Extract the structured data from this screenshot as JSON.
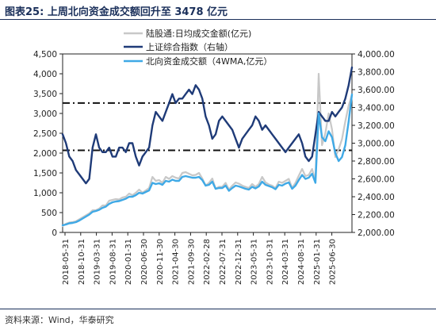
{
  "title": "图表25:   上周北向资金成交额回升至 3478 亿元",
  "source": "资料来源：Wind，华泰研究",
  "chart_data": {
    "type": "line",
    "left_axis": {
      "ylim": [
        0,
        4500
      ],
      "ticks": [
        "0",
        "500",
        "1,000",
        "1,500",
        "2,000",
        "2,500",
        "3,000",
        "3,500",
        "4,000",
        "4,500"
      ]
    },
    "right_axis": {
      "ylim": [
        2000,
        4000
      ],
      "ticks": [
        "2,000.00",
        "2,200.00",
        "2,400.00",
        "2,600.00",
        "2,800.00",
        "3,000.00",
        "3,200.00",
        "3,400.00",
        "3,600.00",
        "3,800.00",
        "4,000.00"
      ]
    },
    "x_ticks": [
      "2018-05-31",
      "2018-10-31",
      "2019-03-31",
      "2019-08-31",
      "2020-01-31",
      "2020-06-30",
      "2020-11-30",
      "2021-04-30",
      "2021-09-30",
      "2022-02-28",
      "2022-07-31",
      "2022-12-31",
      "2023-05-31",
      "2023-10-31",
      "2024-03-31",
      "2024-08-31",
      "2025-01-31",
      "2025-06-30"
    ],
    "x_range": [
      0,
      87
    ],
    "legend": {
      "placement": "top-center",
      "entries": [
        "陆股通:日均成交金额(亿元)",
        "上证综合指数（右轴）",
        "北向资金成交额（4WMA,亿元）"
      ]
    },
    "series": [
      {
        "name": "陆股通:日均成交金额(亿元)",
        "axis": "left",
        "color": "#c8c8c8",
        "points": [
          [
            0,
            160
          ],
          [
            1,
            220
          ],
          [
            2,
            250
          ],
          [
            3,
            260
          ],
          [
            4,
            280
          ],
          [
            5,
            330
          ],
          [
            6,
            380
          ],
          [
            7,
            430
          ],
          [
            8,
            480
          ],
          [
            9,
            560
          ],
          [
            10,
            560
          ],
          [
            11,
            600
          ],
          [
            12,
            680
          ],
          [
            13,
            680
          ],
          [
            14,
            800
          ],
          [
            15,
            820
          ],
          [
            16,
            840
          ],
          [
            17,
            830
          ],
          [
            18,
            880
          ],
          [
            19,
            900
          ],
          [
            20,
            980
          ],
          [
            21,
            940
          ],
          [
            22,
            1000
          ],
          [
            23,
            1080
          ],
          [
            24,
            1000
          ],
          [
            25,
            1060
          ],
          [
            26,
            1120
          ],
          [
            27,
            1400
          ],
          [
            28,
            1300
          ],
          [
            29,
            1320
          ],
          [
            30,
            1250
          ],
          [
            31,
            1400
          ],
          [
            32,
            1350
          ],
          [
            33,
            1420
          ],
          [
            34,
            1380
          ],
          [
            35,
            1360
          ],
          [
            36,
            1500
          ],
          [
            37,
            1520
          ],
          [
            38,
            1480
          ],
          [
            39,
            1440
          ],
          [
            40,
            1450
          ],
          [
            41,
            1500
          ],
          [
            42,
            1360
          ],
          [
            43,
            1180
          ],
          [
            44,
            1250
          ],
          [
            45,
            1360
          ],
          [
            46,
            1100
          ],
          [
            47,
            1150
          ],
          [
            48,
            1150
          ],
          [
            49,
            1250
          ],
          [
            50,
            1080
          ],
          [
            51,
            1180
          ],
          [
            52,
            1260
          ],
          [
            53,
            1230
          ],
          [
            54,
            1180
          ],
          [
            55,
            1150
          ],
          [
            56,
            1120
          ],
          [
            57,
            1220
          ],
          [
            58,
            1150
          ],
          [
            59,
            1220
          ],
          [
            60,
            1400
          ],
          [
            61,
            1260
          ],
          [
            62,
            1210
          ],
          [
            63,
            1180
          ],
          [
            64,
            1120
          ],
          [
            65,
            1280
          ],
          [
            66,
            1250
          ],
          [
            67,
            1300
          ],
          [
            68,
            1350
          ],
          [
            69,
            1120
          ],
          [
            70,
            1250
          ],
          [
            71,
            1430
          ],
          [
            72,
            1600
          ],
          [
            73,
            1420
          ],
          [
            74,
            1450
          ],
          [
            75,
            1600
          ],
          [
            76,
            1300
          ],
          [
            77,
            4000
          ],
          [
            78,
            2200
          ],
          [
            79,
            2500
          ],
          [
            80,
            3000
          ],
          [
            81,
            2600
          ],
          [
            82,
            1900
          ],
          [
            83,
            2100
          ],
          [
            84,
            2350
          ],
          [
            85,
            2800
          ],
          [
            86,
            3200
          ],
          [
            87,
            3478
          ]
        ]
      },
      {
        "name": "上证综合指数（右轴）",
        "axis": "right",
        "color": "#1f3b78",
        "points": [
          [
            0,
            3100
          ],
          [
            1,
            3000
          ],
          [
            2,
            2850
          ],
          [
            3,
            2800
          ],
          [
            4,
            2700
          ],
          [
            5,
            2650
          ],
          [
            6,
            2600
          ],
          [
            7,
            2550
          ],
          [
            8,
            2600
          ],
          [
            9,
            2950
          ],
          [
            10,
            3100
          ],
          [
            11,
            2950
          ],
          [
            12,
            2900
          ],
          [
            13,
            2900
          ],
          [
            14,
            2950
          ],
          [
            15,
            2850
          ],
          [
            16,
            2850
          ],
          [
            17,
            2950
          ],
          [
            18,
            2950
          ],
          [
            19,
            2900
          ],
          [
            20,
            3000
          ],
          [
            21,
            3000
          ],
          [
            22,
            2850
          ],
          [
            23,
            2750
          ],
          [
            24,
            2850
          ],
          [
            25,
            2900
          ],
          [
            26,
            2950
          ],
          [
            27,
            3200
          ],
          [
            28,
            3350
          ],
          [
            29,
            3300
          ],
          [
            30,
            3250
          ],
          [
            31,
            3350
          ],
          [
            32,
            3450
          ],
          [
            33,
            3550
          ],
          [
            34,
            3450
          ],
          [
            35,
            3500
          ],
          [
            36,
            3500
          ],
          [
            37,
            3550
          ],
          [
            38,
            3600
          ],
          [
            39,
            3550
          ],
          [
            40,
            3650
          ],
          [
            41,
            3600
          ],
          [
            42,
            3500
          ],
          [
            43,
            3300
          ],
          [
            44,
            3200
          ],
          [
            45,
            3050
          ],
          [
            46,
            3100
          ],
          [
            47,
            3250
          ],
          [
            48,
            3300
          ],
          [
            49,
            3250
          ],
          [
            50,
            3200
          ],
          [
            51,
            3150
          ],
          [
            52,
            3050
          ],
          [
            53,
            2950
          ],
          [
            54,
            3050
          ],
          [
            55,
            3100
          ],
          [
            56,
            3150
          ],
          [
            57,
            3200
          ],
          [
            58,
            3300
          ],
          [
            59,
            3250
          ],
          [
            60,
            3150
          ],
          [
            61,
            3200
          ],
          [
            62,
            3150
          ],
          [
            63,
            3100
          ],
          [
            64,
            3050
          ],
          [
            65,
            3000
          ],
          [
            66,
            2950
          ],
          [
            67,
            2900
          ],
          [
            68,
            2950
          ],
          [
            69,
            3000
          ],
          [
            70,
            3050
          ],
          [
            71,
            3100
          ],
          [
            72,
            3000
          ],
          [
            73,
            2850
          ],
          [
            74,
            2800
          ],
          [
            75,
            2850
          ],
          [
            76,
            3100
          ],
          [
            77,
            3350
          ],
          [
            78,
            3300
          ],
          [
            79,
            3250
          ],
          [
            80,
            3250
          ],
          [
            81,
            3350
          ],
          [
            82,
            3300
          ],
          [
            83,
            3350
          ],
          [
            84,
            3400
          ],
          [
            85,
            3500
          ],
          [
            86,
            3650
          ],
          [
            87,
            3850
          ]
        ]
      },
      {
        "name": "北向资金成交额（4WMA,亿元）",
        "axis": "left",
        "color": "#3fa9e6",
        "points": [
          [
            0,
            180
          ],
          [
            1,
            200
          ],
          [
            2,
            230
          ],
          [
            3,
            240
          ],
          [
            4,
            260
          ],
          [
            5,
            300
          ],
          [
            6,
            350
          ],
          [
            7,
            400
          ],
          [
            8,
            450
          ],
          [
            9,
            520
          ],
          [
            10,
            540
          ],
          [
            11,
            570
          ],
          [
            12,
            620
          ],
          [
            13,
            650
          ],
          [
            14,
            720
          ],
          [
            15,
            760
          ],
          [
            16,
            780
          ],
          [
            17,
            790
          ],
          [
            18,
            820
          ],
          [
            19,
            850
          ],
          [
            20,
            900
          ],
          [
            21,
            900
          ],
          [
            22,
            940
          ],
          [
            23,
            1000
          ],
          [
            24,
            980
          ],
          [
            25,
            1020
          ],
          [
            26,
            1060
          ],
          [
            27,
            1250
          ],
          [
            28,
            1220
          ],
          [
            29,
            1240
          ],
          [
            30,
            1200
          ],
          [
            31,
            1300
          ],
          [
            32,
            1280
          ],
          [
            33,
            1330
          ],
          [
            34,
            1300
          ],
          [
            35,
            1300
          ],
          [
            36,
            1400
          ],
          [
            37,
            1420
          ],
          [
            38,
            1400
          ],
          [
            39,
            1380
          ],
          [
            40,
            1380
          ],
          [
            41,
            1400
          ],
          [
            42,
            1320
          ],
          [
            43,
            1180
          ],
          [
            44,
            1200
          ],
          [
            45,
            1280
          ],
          [
            46,
            1100
          ],
          [
            47,
            1120
          ],
          [
            48,
            1120
          ],
          [
            49,
            1180
          ],
          [
            50,
            1050
          ],
          [
            51,
            1120
          ],
          [
            52,
            1180
          ],
          [
            53,
            1160
          ],
          [
            54,
            1130
          ],
          [
            55,
            1100
          ],
          [
            56,
            1080
          ],
          [
            57,
            1150
          ],
          [
            58,
            1110
          ],
          [
            59,
            1160
          ],
          [
            60,
            1280
          ],
          [
            61,
            1200
          ],
          [
            62,
            1170
          ],
          [
            63,
            1140
          ],
          [
            64,
            1090
          ],
          [
            65,
            1200
          ],
          [
            66,
            1180
          ],
          [
            67,
            1230
          ],
          [
            68,
            1260
          ],
          [
            69,
            1100
          ],
          [
            70,
            1180
          ],
          [
            71,
            1320
          ],
          [
            72,
            1450
          ],
          [
            73,
            1350
          ],
          [
            74,
            1380
          ],
          [
            75,
            1480
          ],
          [
            76,
            1250
          ],
          [
            77,
            3000
          ],
          [
            78,
            2400
          ],
          [
            79,
            2300
          ],
          [
            80,
            2550
          ],
          [
            81,
            2400
          ],
          [
            82,
            2000
          ],
          [
            83,
            1800
          ],
          [
            84,
            1900
          ],
          [
            85,
            2200
          ],
          [
            86,
            2800
          ],
          [
            87,
            3478
          ]
        ]
      }
    ],
    "reference_lines": [
      {
        "axis": "right",
        "value": 3450,
        "style": "dash-dot"
      },
      {
        "axis": "right",
        "value": 2920,
        "style": "dash-dot"
      }
    ]
  }
}
